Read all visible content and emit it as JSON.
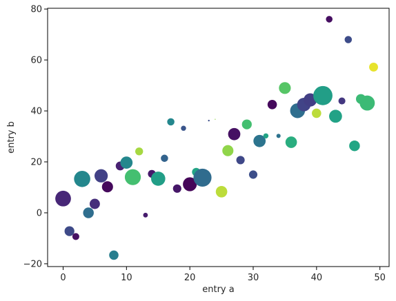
{
  "chart_data": {
    "type": "scatter",
    "title": "",
    "xlabel": "entry a",
    "ylabel": "entry b",
    "xlim": [
      -2.45,
      51.45
    ],
    "ylim": [
      -21.1,
      80.3
    ],
    "xticks": [
      0,
      10,
      20,
      30,
      40,
      50
    ],
    "yticks": [
      -20,
      0,
      20,
      40,
      60,
      80
    ],
    "grid": false,
    "legend": "none",
    "colormap": "viridis",
    "points": [
      {
        "x": 0,
        "y": 5.6,
        "c": 0.14,
        "s": 280
      },
      {
        "x": 1,
        "y": -7.2,
        "c": 0.28,
        "s": 110
      },
      {
        "x": 2,
        "y": -9.3,
        "c": 0.06,
        "s": 55
      },
      {
        "x": 3,
        "y": 13.3,
        "c": 0.58,
        "s": 300
      },
      {
        "x": 4,
        "y": 0.0,
        "c": 0.45,
        "s": 130
      },
      {
        "x": 5,
        "y": 3.5,
        "c": 0.17,
        "s": 120
      },
      {
        "x": 6,
        "y": 14.5,
        "c": 0.24,
        "s": 200
      },
      {
        "x": 7,
        "y": 10.2,
        "c": 0.03,
        "s": 140
      },
      {
        "x": 8,
        "y": -16.6,
        "c": 0.53,
        "s": 100
      },
      {
        "x": 9,
        "y": 18.4,
        "c": 0.12,
        "s": 90
      },
      {
        "x": 10,
        "y": 19.7,
        "c": 0.58,
        "s": 170
      },
      {
        "x": 11,
        "y": 14.0,
        "c": 0.88,
        "s": 290
      },
      {
        "x": 12,
        "y": 24.1,
        "c": 0.96,
        "s": 70
      },
      {
        "x": 13,
        "y": -0.9,
        "c": 0.1,
        "s": 25
      },
      {
        "x": 14,
        "y": 15.3,
        "c": 0.09,
        "s": 70
      },
      {
        "x": 15,
        "y": 13.4,
        "c": 0.7,
        "s": 230
      },
      {
        "x": 16,
        "y": 21.4,
        "c": 0.4,
        "s": 60
      },
      {
        "x": 17,
        "y": 35.7,
        "c": 0.58,
        "s": 60
      },
      {
        "x": 18,
        "y": 9.5,
        "c": 0.08,
        "s": 80
      },
      {
        "x": 19,
        "y": 33.2,
        "c": 0.33,
        "s": 30
      },
      {
        "x": 20,
        "y": 11.2,
        "c": 0.02,
        "s": 220
      },
      {
        "x": 21,
        "y": 16.0,
        "c": 0.73,
        "s": 80
      },
      {
        "x": 22,
        "y": 13.8,
        "c": 0.44,
        "s": 370
      },
      {
        "x": 23,
        "y": 36.2,
        "c": 0.3,
        "s": 3
      },
      {
        "x": 24,
        "y": 36.7,
        "c": 0.95,
        "s": 1
      },
      {
        "x": 25,
        "y": 8.3,
        "c": 0.97,
        "s": 150
      },
      {
        "x": 26,
        "y": 24.4,
        "c": 0.95,
        "s": 140
      },
      {
        "x": 27,
        "y": 30.9,
        "c": 0.06,
        "s": 170
      },
      {
        "x": 28,
        "y": 20.7,
        "c": 0.27,
        "s": 80
      },
      {
        "x": 29,
        "y": 34.7,
        "c": 0.88,
        "s": 110
      },
      {
        "x": 30,
        "y": 15.0,
        "c": 0.3,
        "s": 80
      },
      {
        "x": 31,
        "y": 28.2,
        "c": 0.48,
        "s": 170
      },
      {
        "x": 32,
        "y": 30.2,
        "c": 0.73,
        "s": 30
      },
      {
        "x": 33,
        "y": 42.5,
        "c": 0.03,
        "s": 100
      },
      {
        "x": 34,
        "y": 30.2,
        "c": 0.47,
        "s": 20
      },
      {
        "x": 35,
        "y": 49.0,
        "c": 0.9,
        "s": 160
      },
      {
        "x": 36,
        "y": 27.7,
        "c": 0.78,
        "s": 150
      },
      {
        "x": 37,
        "y": 40.1,
        "c": 0.45,
        "s": 250
      },
      {
        "x": 38,
        "y": 42.5,
        "c": 0.25,
        "s": 210
      },
      {
        "x": 39,
        "y": 44.3,
        "c": 0.23,
        "s": 200
      },
      {
        "x": 40,
        "y": 39.1,
        "c": 0.97,
        "s": 100
      },
      {
        "x": 41,
        "y": 46.0,
        "c": 0.7,
        "s": 420
      },
      {
        "x": 42,
        "y": 76.0,
        "c": 0.05,
        "s": 50
      },
      {
        "x": 43,
        "y": 37.9,
        "c": 0.72,
        "s": 190
      },
      {
        "x": 44,
        "y": 43.9,
        "c": 0.2,
        "s": 55
      },
      {
        "x": 45,
        "y": 68.0,
        "c": 0.29,
        "s": 60
      },
      {
        "x": 46,
        "y": 26.3,
        "c": 0.74,
        "s": 130
      },
      {
        "x": 47,
        "y": 44.7,
        "c": 0.85,
        "s": 110
      },
      {
        "x": 48,
        "y": 43.1,
        "c": 0.85,
        "s": 260
      },
      {
        "x": 49,
        "y": 57.2,
        "c": 0.99,
        "s": 90
      }
    ]
  }
}
